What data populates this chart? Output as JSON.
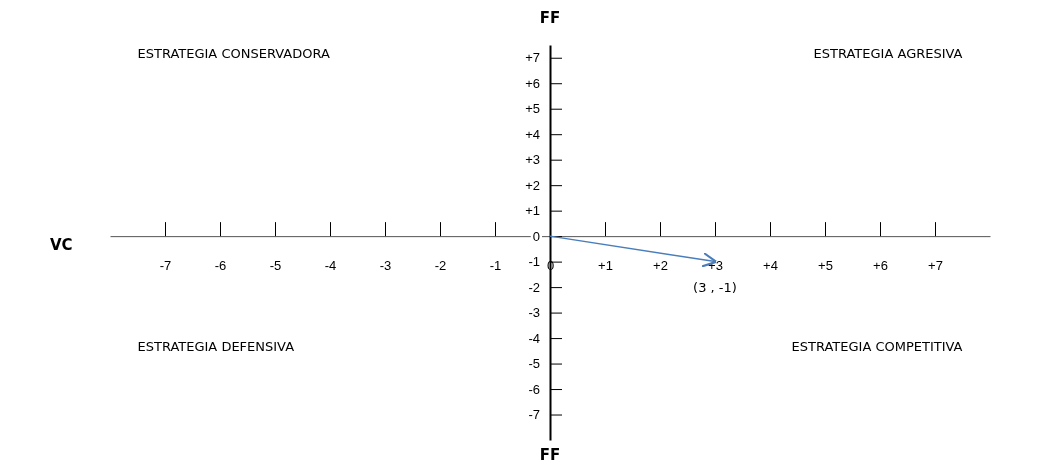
{
  "chart_data": {
    "type": "line",
    "xlabel": "VC",
    "ylabel": "FF",
    "x": [
      0,
      3
    ],
    "series": [
      {
        "color": "#4a7ebb",
        "values": [
          0,
          -1
        ]
      }
    ],
    "xlim": [
      -8,
      8
    ],
    "ylim": [
      -8,
      7.5
    ],
    "xticks": [
      -7,
      -6,
      -5,
      -4,
      -3,
      -2,
      -1,
      0,
      {
        "value": 1,
        "label": "+1"
      },
      {
        "value": 2,
        "label": "+2"
      },
      {
        "value": 3,
        "label": "+3"
      },
      {
        "value": 4,
        "label": "+4"
      },
      {
        "value": 5,
        "label": "+5"
      },
      {
        "value": 6,
        "label": "+6"
      },
      {
        "value": 7,
        "label": "+7"
      }
    ],
    "yticks": [
      -7,
      -6,
      -5,
      -4,
      -3,
      -2,
      -1,
      0,
      {
        "value": 1,
        "label": "+1"
      },
      {
        "value": 2,
        "label": "+2"
      },
      {
        "value": 3,
        "label": "+3"
      },
      {
        "value": 4,
        "label": "+4"
      },
      {
        "value": 5,
        "label": "+5"
      },
      {
        "value": 6,
        "label": "+6"
      },
      {
        "value": 7,
        "label": "+7"
      }
    ],
    "marker": "none",
    "annotations": [
      "ESTRATEGIA CONSERVADORA",
      "ESTRATEGIA AGRESIVA",
      "ESTRATEGIA DEFENSIVA",
      "ESTRATEGIA COMPETITIVA",
      "FF",
      {
        "text": "(3 ,    -1)",
        "x": 3,
        "y": -1
      }
    ]
  }
}
